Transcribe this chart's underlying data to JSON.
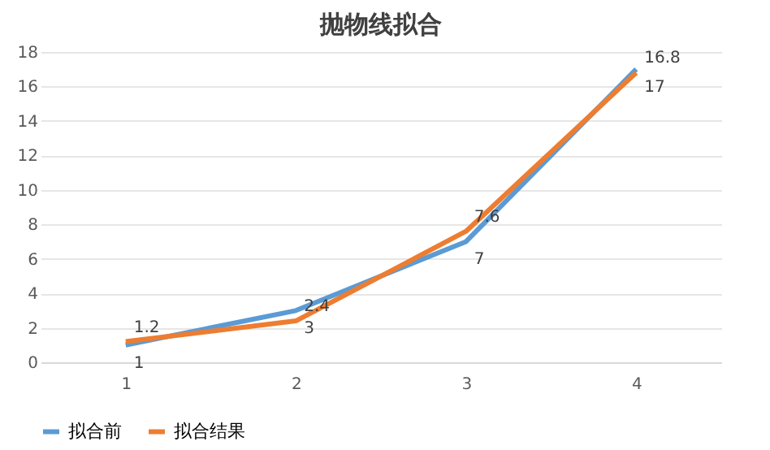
{
  "chart_data": {
    "type": "line",
    "title": "抛物线拟合",
    "categories": [
      "1",
      "2",
      "3",
      "4"
    ],
    "series": [
      {
        "name": "拟合前",
        "color": "#5b9bd5",
        "values": [
          1,
          3,
          7,
          17
        ]
      },
      {
        "name": "拟合结果",
        "color": "#ed7d31",
        "values": [
          1.2,
          2.4,
          7.6,
          16.8
        ]
      }
    ],
    "ylim": [
      0,
      18
    ],
    "yticks": [
      0,
      2,
      4,
      6,
      8,
      10,
      12,
      14,
      16,
      18
    ],
    "grid": "y",
    "legend": "bottom",
    "data_labels": true,
    "marker": "none",
    "line_style": "solid"
  }
}
